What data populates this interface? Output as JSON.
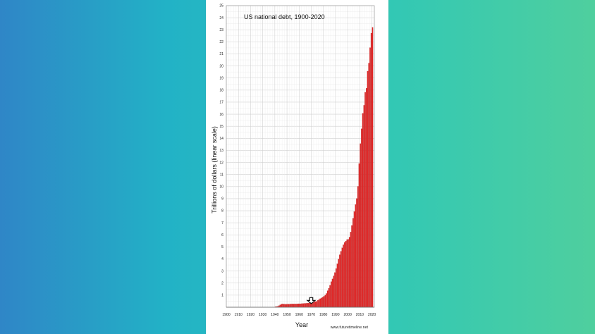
{
  "background": {
    "gradient_colors": [
      "#2f86c7",
      "#22b2c6",
      "#2fc7b7",
      "#4fcf9e"
    ],
    "panel_color": "#ffffff"
  },
  "chart_data": {
    "type": "bar",
    "title": "US national debt, 1900-2020",
    "xlabel": "Year",
    "ylabel": "Trillions of dollars (linear scale)",
    "source": "www.futuretimeline.net",
    "x_ticks": [
      "1900",
      "1910",
      "1920",
      "1930",
      "1940",
      "1950",
      "1960",
      "1970",
      "1980",
      "1990",
      "2000",
      "2010",
      "2020"
    ],
    "y_ticks": [
      "1",
      "2",
      "3",
      "4",
      "5",
      "6",
      "7",
      "8",
      "9",
      "10",
      "11",
      "12",
      "13",
      "14",
      "15",
      "16",
      "17",
      "18",
      "19",
      "20",
      "21",
      "22",
      "23",
      "24",
      "25"
    ],
    "xlim": [
      1900,
      2022
    ],
    "ylim": [
      0,
      25
    ],
    "grid": true,
    "bar_color": "#e32626",
    "annotation": {
      "type": "down-arrow",
      "x": 1970,
      "y_top": 0.8,
      "y_bottom": 0.3
    },
    "years": [
      1940,
      1941,
      1942,
      1943,
      1944,
      1945,
      1946,
      1947,
      1948,
      1949,
      1950,
      1951,
      1952,
      1953,
      1954,
      1955,
      1956,
      1957,
      1958,
      1959,
      1960,
      1961,
      1962,
      1963,
      1964,
      1965,
      1966,
      1967,
      1968,
      1969,
      1970,
      1971,
      1972,
      1973,
      1974,
      1975,
      1976,
      1977,
      1978,
      1979,
      1980,
      1981,
      1982,
      1983,
      1984,
      1985,
      1986,
      1987,
      1988,
      1989,
      1990,
      1991,
      1992,
      1993,
      1994,
      1995,
      1996,
      1997,
      1998,
      1999,
      2000,
      2001,
      2002,
      2003,
      2004,
      2005,
      2006,
      2007,
      2008,
      2009,
      2010,
      2011,
      2012,
      2013,
      2014,
      2015,
      2016,
      2017,
      2018,
      2019,
      2020
    ],
    "values": [
      0.05,
      0.06,
      0.08,
      0.14,
      0.2,
      0.26,
      0.27,
      0.26,
      0.25,
      0.25,
      0.26,
      0.26,
      0.26,
      0.27,
      0.27,
      0.27,
      0.27,
      0.27,
      0.28,
      0.29,
      0.29,
      0.29,
      0.3,
      0.31,
      0.32,
      0.32,
      0.33,
      0.34,
      0.37,
      0.37,
      0.38,
      0.41,
      0.44,
      0.47,
      0.49,
      0.58,
      0.65,
      0.71,
      0.78,
      0.83,
      0.91,
      1.0,
      1.14,
      1.37,
      1.57,
      1.82,
      2.12,
      2.35,
      2.6,
      2.87,
      3.21,
      3.6,
      4.0,
      4.35,
      4.64,
      4.92,
      5.18,
      5.37,
      5.48,
      5.61,
      5.63,
      5.81,
      6.23,
      6.78,
      7.38,
      7.93,
      8.51,
      9.01,
      10.02,
      11.91,
      13.56,
      14.79,
      16.07,
      16.74,
      17.82,
      18.15,
      19.57,
      20.24,
      21.52,
      22.72,
      23.2
    ]
  }
}
